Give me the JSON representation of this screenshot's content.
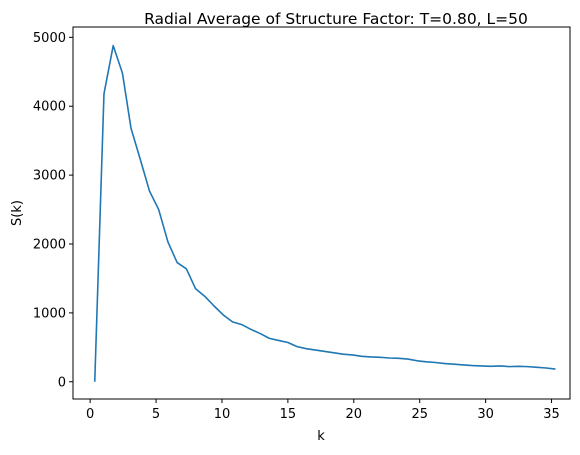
{
  "chart_data": {
    "type": "line",
    "title": "Radial Average of Structure Factor: T=0.80, L=50",
    "xlabel": "k",
    "ylabel": "S(k)",
    "xlim": [
      -1.3,
      36.4
    ],
    "ylim": [
      -250,
      5150
    ],
    "xticks": [
      0,
      5,
      10,
      15,
      20,
      25,
      30,
      35
    ],
    "yticks": [
      0,
      1000,
      2000,
      3000,
      4000,
      5000
    ],
    "grid": false,
    "legend": "none",
    "series": [
      {
        "color": "#1f77b4",
        "x": [
          0.35,
          1.05,
          1.75,
          2.45,
          3.1,
          3.8,
          4.5,
          5.2,
          5.9,
          6.6,
          7.3,
          8.0,
          8.7,
          9.4,
          10.1,
          10.8,
          11.5,
          12.2,
          12.9,
          13.6,
          14.3,
          15.0,
          15.7,
          16.4,
          17.1,
          17.8,
          18.5,
          19.2,
          19.9,
          20.6,
          21.3,
          22.0,
          22.7,
          23.4,
          24.1,
          24.8,
          25.5,
          26.2,
          26.9,
          27.6,
          28.3,
          29.0,
          29.7,
          30.4,
          31.1,
          31.8,
          32.5,
          33.2,
          33.9,
          34.6,
          35.3
        ],
        "values": [
          0,
          4180,
          4880,
          4480,
          3680,
          3230,
          2770,
          2500,
          2030,
          1730,
          1640,
          1350,
          1240,
          1100,
          970,
          870,
          830,
          760,
          700,
          630,
          600,
          570,
          510,
          480,
          460,
          440,
          420,
          400,
          390,
          370,
          360,
          355,
          345,
          340,
          330,
          305,
          290,
          280,
          265,
          255,
          245,
          235,
          230,
          225,
          230,
          220,
          225,
          220,
          210,
          200,
          185
        ]
      }
    ]
  }
}
